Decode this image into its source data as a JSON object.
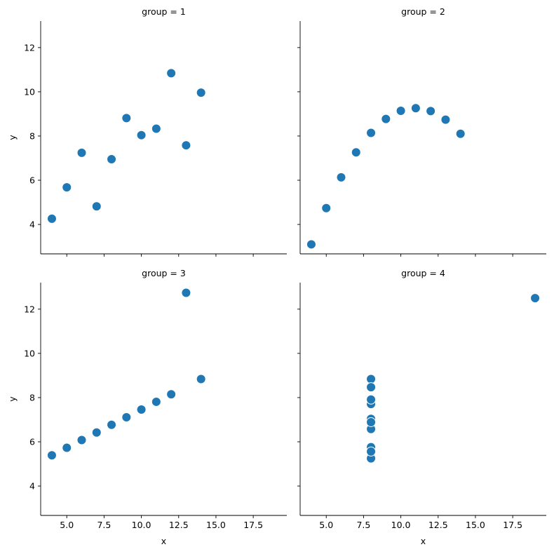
{
  "chart_data": [
    {
      "type": "scatter",
      "title": "group = 1",
      "xlabel": "",
      "ylabel": "y",
      "x": [
        10,
        8,
        13,
        9,
        11,
        14,
        6,
        4,
        12,
        7,
        5
      ],
      "y": [
        8.04,
        6.95,
        7.58,
        8.81,
        8.33,
        9.96,
        7.24,
        4.26,
        10.84,
        4.82,
        5.68
      ]
    },
    {
      "type": "scatter",
      "title": "group = 2",
      "xlabel": "",
      "ylabel": "",
      "x": [
        10,
        8,
        13,
        9,
        11,
        14,
        6,
        4,
        12,
        7,
        5
      ],
      "y": [
        9.14,
        8.14,
        8.74,
        8.77,
        9.26,
        8.1,
        6.13,
        3.1,
        9.13,
        7.26,
        4.74
      ]
    },
    {
      "type": "scatter",
      "title": "group = 3",
      "xlabel": "x",
      "ylabel": "y",
      "x": [
        10,
        8,
        13,
        9,
        11,
        14,
        6,
        4,
        12,
        7,
        5
      ],
      "y": [
        7.46,
        6.77,
        12.74,
        7.11,
        7.81,
        8.84,
        6.08,
        5.39,
        8.15,
        6.42,
        5.73
      ]
    },
    {
      "type": "scatter",
      "title": "group = 4",
      "xlabel": "x",
      "ylabel": "",
      "x": [
        8,
        8,
        8,
        8,
        8,
        8,
        8,
        19,
        8,
        8,
        8
      ],
      "y": [
        6.58,
        5.76,
        7.71,
        8.84,
        8.47,
        7.04,
        5.25,
        12.5,
        5.56,
        7.91,
        6.89
      ]
    }
  ],
  "shared": {
    "xlim": [
      3.25,
      19.75
    ],
    "ylim": [
      2.67,
      13.2
    ],
    "xticks": [
      5,
      7.5,
      10,
      12.5,
      15,
      17.5
    ],
    "xtick_labels": [
      "5.0",
      "7.5",
      "10.0",
      "12.5",
      "15.0",
      "17.5"
    ],
    "yticks": [
      4,
      6,
      8,
      10,
      12
    ],
    "ytick_labels": [
      "4",
      "6",
      "8",
      "10",
      "12"
    ],
    "marker_color": "#1f77b4"
  }
}
